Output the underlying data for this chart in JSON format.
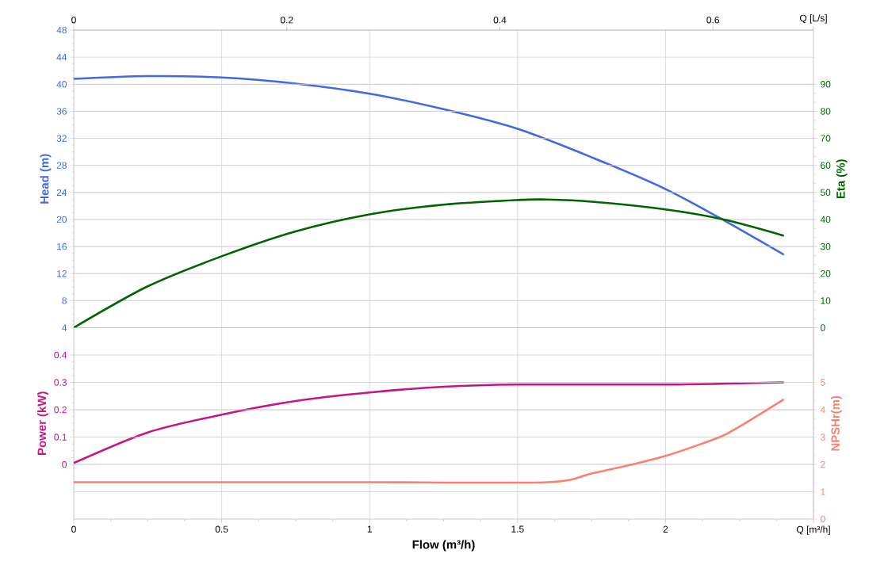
{
  "chart_data": [
    {
      "type": "line",
      "ylabel": "Head (m)",
      "y2label": "Eta (%)",
      "xlim": [
        0,
        2.5
      ],
      "xticks": [
        0,
        0.5,
        1,
        1.5,
        2
      ],
      "ylim": [
        4,
        48
      ],
      "yticks": [
        4,
        8,
        12,
        16,
        20,
        24,
        28,
        32,
        36,
        40,
        44,
        48
      ],
      "y2lim": [
        0,
        110
      ],
      "y2ticks": [
        0,
        10,
        20,
        30,
        40,
        50,
        60,
        70,
        80,
        90
      ],
      "x2lim": [
        0,
        0.6944
      ],
      "x2ticks": [
        0,
        0.2,
        0.4,
        0.6,
        {
          "value": 0.6944,
          "label": "Q [L/s]"
        }
      ],
      "tick_labels": "y",
      "grid": true,
      "series": [
        {
          "axis": "y",
          "color": "#4169e1",
          "x": [
            0,
            0.25,
            0.5,
            0.75,
            1,
            1.25,
            1.5,
            1.75,
            2,
            2.2,
            2.4
          ],
          "values": [
            40.8,
            41.2,
            41.0,
            40.1,
            38.6,
            36.3,
            33.4,
            29.2,
            24.5,
            19.8,
            14.8
          ]
        },
        {
          "axis": "y2",
          "color": "#006400",
          "x": [
            0,
            0.25,
            0.5,
            0.75,
            1,
            1.25,
            1.5,
            1.6,
            1.75,
            2,
            2.2,
            2.4
          ],
          "values": [
            0,
            15.3,
            26.4,
            35.6,
            41.9,
            45.5,
            47.2,
            47.4,
            46.6,
            43.7,
            39.9,
            34.0
          ]
        }
      ]
    },
    {
      "type": "line",
      "xlabel": "Flow (m³/h)",
      "ylabel": "Power (kW)",
      "y2label": "NPSHr(m)",
      "xlim": [
        0,
        2.5
      ],
      "xticks": [
        0,
        0.5,
        1,
        1.5,
        2,
        {
          "value": 2.5,
          "label": "Q [m³/h]"
        }
      ],
      "ylim": [
        -0.2,
        0.5
      ],
      "yticks": [
        0,
        0.1,
        0.2,
        0.3,
        0.4
      ],
      "y2lim": [
        0,
        7
      ],
      "y2ticks": [
        0,
        1,
        2,
        3,
        4,
        5
      ],
      "grid": true,
      "series": [
        {
          "axis": "y",
          "color": "#c71585",
          "x": [
            0,
            0.25,
            0.5,
            0.75,
            1,
            1.25,
            1.5,
            2,
            2.4
          ],
          "values": [
            0.005,
            0.117,
            0.182,
            0.232,
            0.263,
            0.284,
            0.292,
            0.292,
            0.3
          ]
        },
        {
          "axis": "y2",
          "color": "#fa8072",
          "x": [
            0,
            0.5,
            1,
            1.6,
            1.75,
            1.9,
            2,
            2.1,
            2.2,
            2.3,
            2.4
          ],
          "values": [
            1.35,
            1.35,
            1.35,
            1.35,
            1.67,
            2.03,
            2.31,
            2.67,
            3.08,
            3.71,
            4.38
          ]
        }
      ]
    }
  ]
}
